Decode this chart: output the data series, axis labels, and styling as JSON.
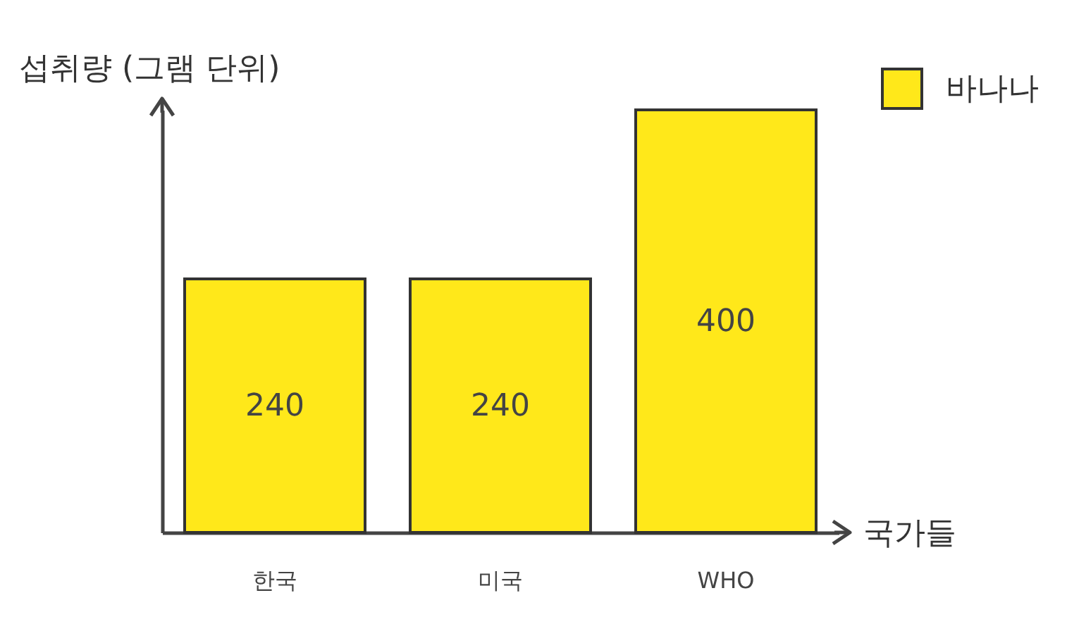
{
  "chart_data": {
    "type": "bar",
    "xlabel": "국가들",
    "ylabel": "섭취량 (그램 단위)",
    "categories": [
      "한국",
      "미국",
      "WHO"
    ],
    "series": [
      {
        "name": "바나나",
        "color": "#ffe81a",
        "values": [
          240,
          240,
          400
        ]
      }
    ],
    "data_labels": true,
    "legend": "top right",
    "grid": false
  }
}
